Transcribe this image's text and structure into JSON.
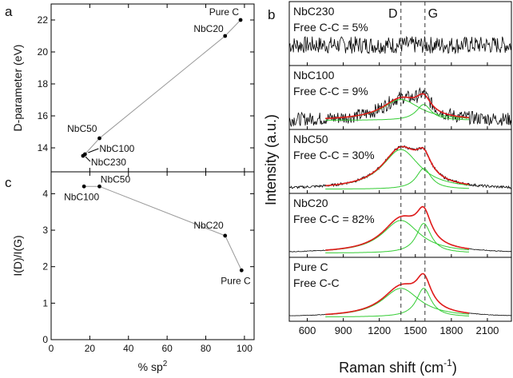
{
  "chart_data": [
    {
      "id": "a",
      "type": "scatter",
      "panel_label": "a",
      "ylabel": "D-parameter (eV)",
      "xlim": [
        0,
        105
      ],
      "ylim": [
        12.5,
        23
      ],
      "yticks": [
        14,
        16,
        18,
        20,
        22
      ],
      "xticks": [
        0,
        20,
        40,
        60,
        80,
        100
      ],
      "connector_order": [
        "NbC230",
        "NbC100",
        "NbC50",
        "NbC20",
        "Pure C"
      ],
      "points": [
        {
          "name": "Pure C",
          "x": 98,
          "y": 22.0
        },
        {
          "name": "NbC20",
          "x": 90,
          "y": 21.0
        },
        {
          "name": "NbC50",
          "x": 25,
          "y": 14.6
        },
        {
          "name": "NbC100",
          "x": 17.5,
          "y": 13.6
        },
        {
          "name": "NbC230",
          "x": 16.5,
          "y": 13.5
        }
      ]
    },
    {
      "id": "c",
      "type": "line",
      "panel_label": "c",
      "ylabel": "I(D)/I(G)",
      "xlabel_main": "% sp",
      "xlabel_sup": "2",
      "xlim": [
        0,
        105
      ],
      "ylim": [
        0,
        4.6
      ],
      "yticks": [
        0,
        1,
        2,
        3,
        4
      ],
      "xticks": [
        0,
        20,
        40,
        60,
        80,
        100
      ],
      "points": [
        {
          "name": "NbC100",
          "x": 17,
          "y": 4.2
        },
        {
          "name": "NbC50",
          "x": 25,
          "y": 4.2
        },
        {
          "name": "NbC20",
          "x": 90,
          "y": 2.85
        },
        {
          "name": "Pure C",
          "x": 98.5,
          "y": 1.9
        }
      ]
    },
    {
      "id": "b",
      "type": "line",
      "panel_label": "b",
      "ylabel": "Intensity (a.u.)",
      "xlabel_main": "Raman shift (cm",
      "xlabel_sup": "-1",
      "xlabel_close": ")",
      "xlim": [
        450,
        2300
      ],
      "xticks": [
        600,
        900,
        1200,
        1500,
        1800,
        2100
      ],
      "band_lines": [
        {
          "label": "D",
          "x": 1380
        },
        {
          "label": "G",
          "x": 1580
        }
      ],
      "spectra": [
        {
          "name": "NbC230",
          "free_cc": "Free C-C = 5%",
          "noise": 0.35,
          "D_amp": 0,
          "G_amp": 0,
          "baseline": 0.35
        },
        {
          "name": "NbC100",
          "free_cc": "Free C-C = 9%",
          "noise": 0.3,
          "D_amp": 0.42,
          "G_amp": 0.32,
          "baseline": 0.12
        },
        {
          "name": "NbC50",
          "free_cc": "Free C-C = 30%",
          "noise": 0.06,
          "D_amp": 0.8,
          "G_amp": 0.42,
          "baseline": 0.02
        },
        {
          "name": "NbC20",
          "free_cc": "Free C-C = 82%",
          "noise": 0.015,
          "D_amp": 0.66,
          "G_amp": 0.6,
          "baseline": 0.02
        },
        {
          "name": "Pure C",
          "free_cc": "Free C-C",
          "noise": 0.01,
          "D_amp": 0.58,
          "G_amp": 0.58,
          "baseline": 0.02
        }
      ],
      "colors": {
        "data": "#000000",
        "fit": "#e01b1b",
        "components": "#33cc33",
        "connector": "#999999",
        "dashed": "#333333"
      }
    }
  ]
}
